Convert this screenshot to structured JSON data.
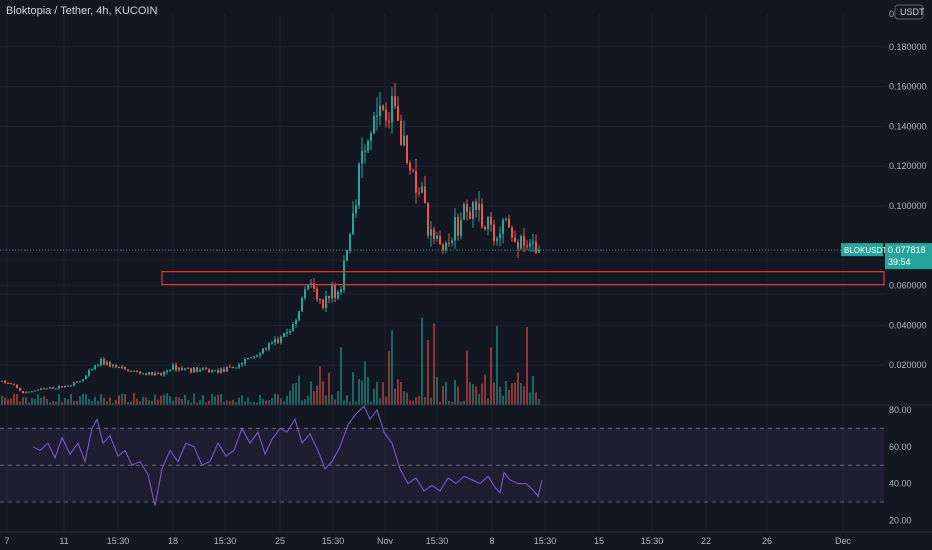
{
  "header": {
    "title": "Bloktopia / Tether, 4h, KUCOIN",
    "currency": "USDT",
    "top_tick": "0."
  },
  "colors": {
    "bg": "#131722",
    "up": "#26a69a",
    "down": "#ef5350",
    "rsi": "#7e57c2",
    "grid": "#1e2230",
    "text": "#b2b5be",
    "zone": "#e53935"
  },
  "price_tag": {
    "symbol": "BLOKUSDT",
    "price": "0.077818",
    "countdown": "39:54"
  },
  "chart_data": [
    {
      "type": "candlestick",
      "title": "Bloktopia / Tether, 4h, KUCOIN",
      "ylim": [
        0.0,
        0.19
      ],
      "y_ticks": [
        "0.180000",
        "0.160000",
        "0.140000",
        "0.120000",
        "0.100000",
        "0.060000",
        "0.040000",
        "0.020000"
      ],
      "x_ticks": [
        "7",
        "11",
        "15:30",
        "18",
        "15:30",
        "25",
        "15:30",
        "Nov",
        "15:30",
        "8",
        "15:30",
        "15",
        "15:30",
        "22",
        "26",
        "Dec"
      ],
      "current_price": 0.077818,
      "zone": [
        0.0605,
        0.067
      ],
      "trajectory": [
        [
          0,
          0.012
        ],
        [
          12,
          0.01
        ],
        [
          22,
          0.006
        ],
        [
          40,
          0.008
        ],
        [
          60,
          0.009
        ],
        [
          80,
          0.012
        ],
        [
          100,
          0.022
        ],
        [
          120,
          0.018
        ],
        [
          140,
          0.016
        ],
        [
          160,
          0.015
        ],
        [
          170,
          0.019
        ],
        [
          190,
          0.018
        ],
        [
          210,
          0.017
        ],
        [
          230,
          0.018
        ],
        [
          250,
          0.024
        ],
        [
          270,
          0.03
        ],
        [
          285,
          0.035
        ],
        [
          295,
          0.042
        ],
        [
          305,
          0.063
        ],
        [
          315,
          0.055
        ],
        [
          322,
          0.048
        ],
        [
          330,
          0.056
        ],
        [
          340,
          0.058
        ],
        [
          346,
          0.076
        ],
        [
          355,
          0.1
        ],
        [
          362,
          0.14
        ],
        [
          368,
          0.128
        ],
        [
          377,
          0.162
        ],
        [
          385,
          0.14
        ],
        [
          393,
          0.15
        ],
        [
          400,
          0.13
        ],
        [
          408,
          0.12
        ],
        [
          415,
          0.112
        ],
        [
          422,
          0.108
        ],
        [
          428,
          0.085
        ],
        [
          435,
          0.087
        ],
        [
          443,
          0.078
        ],
        [
          450,
          0.085
        ],
        [
          460,
          0.093
        ],
        [
          470,
          0.097
        ],
        [
          480,
          0.095
        ],
        [
          490,
          0.088
        ],
        [
          497,
          0.086
        ],
        [
          503,
          0.093
        ],
        [
          510,
          0.086
        ],
        [
          520,
          0.083
        ],
        [
          530,
          0.08
        ],
        [
          540,
          0.075
        ]
      ]
    },
    {
      "type": "line",
      "ylim": [
        15,
        85
      ],
      "y_ticks": [
        "80.00",
        "60.00",
        "40.00",
        "20.00"
      ],
      "levels": [
        70,
        50,
        30
      ],
      "values": [
        [
          33,
          60
        ],
        [
          40,
          58
        ],
        [
          48,
          62
        ],
        [
          55,
          54
        ],
        [
          62,
          65
        ],
        [
          70,
          56
        ],
        [
          78,
          62
        ],
        [
          85,
          52
        ],
        [
          92,
          70
        ],
        [
          97,
          75
        ],
        [
          103,
          62
        ],
        [
          110,
          66
        ],
        [
          118,
          55
        ],
        [
          125,
          58
        ],
        [
          132,
          50
        ],
        [
          140,
          52
        ],
        [
          148,
          45
        ],
        [
          155,
          28
        ],
        [
          162,
          48
        ],
        [
          170,
          58
        ],
        [
          178,
          52
        ],
        [
          186,
          62
        ],
        [
          194,
          60
        ],
        [
          202,
          50
        ],
        [
          210,
          52
        ],
        [
          218,
          62
        ],
        [
          226,
          55
        ],
        [
          234,
          58
        ],
        [
          242,
          70
        ],
        [
          250,
          62
        ],
        [
          258,
          68
        ],
        [
          265,
          56
        ],
        [
          272,
          64
        ],
        [
          280,
          70
        ],
        [
          287,
          68
        ],
        [
          295,
          75
        ],
        [
          302,
          62
        ],
        [
          310,
          67
        ],
        [
          318,
          58
        ],
        [
          325,
          48
        ],
        [
          332,
          52
        ],
        [
          340,
          60
        ],
        [
          348,
          72
        ],
        [
          356,
          78
        ],
        [
          364,
          82
        ],
        [
          370,
          75
        ],
        [
          377,
          80
        ],
        [
          384,
          68
        ],
        [
          392,
          62
        ],
        [
          400,
          48
        ],
        [
          408,
          40
        ],
        [
          416,
          43
        ],
        [
          424,
          36
        ],
        [
          432,
          39
        ],
        [
          440,
          36
        ],
        [
          448,
          43
        ],
        [
          456,
          40
        ],
        [
          464,
          44
        ],
        [
          472,
          42
        ],
        [
          480,
          40
        ],
        [
          488,
          44
        ],
        [
          495,
          38
        ],
        [
          500,
          35
        ],
        [
          504,
          46
        ],
        [
          510,
          42
        ],
        [
          518,
          40
        ],
        [
          526,
          40
        ],
        [
          534,
          36
        ],
        [
          538,
          33
        ],
        [
          542,
          42
        ]
      ]
    }
  ]
}
